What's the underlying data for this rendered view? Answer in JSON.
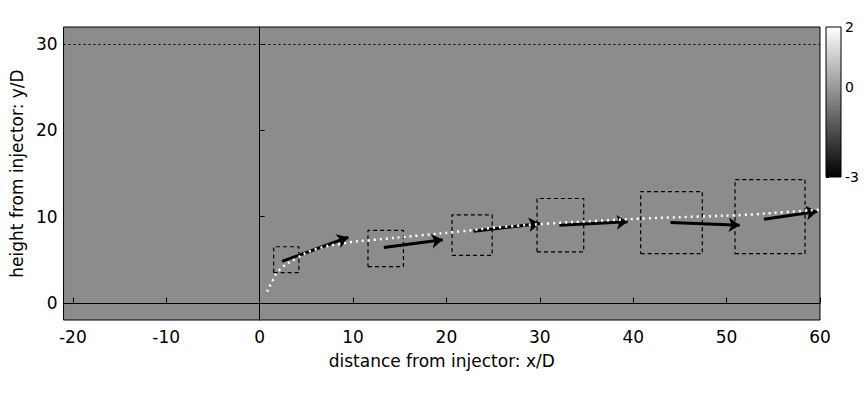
{
  "chart_data": {
    "type": "line",
    "x_label": "distance from injector: x/D",
    "y_label": "height from injector: y/D",
    "xlim": [
      -21,
      60
    ],
    "xticks": [
      -20,
      -10,
      0,
      10,
      20,
      30,
      40,
      50,
      60
    ],
    "ylim": [
      -2,
      32
    ],
    "yticks": [
      0,
      10,
      20,
      30
    ],
    "grid": false,
    "hlines": [
      0,
      30
    ],
    "trajectory": {
      "x": [
        0.8,
        1.5,
        2.1,
        4,
        6,
        9,
        12.3,
        17,
        21.7,
        26,
        31,
        36,
        41.5,
        47,
        51.9,
        56,
        60
      ],
      "y": [
        1.3,
        2.8,
        3.8,
        5.2,
        6.2,
        6.9,
        7.3,
        7.8,
        8.3,
        8.8,
        9.2,
        9.5,
        9.8,
        10.0,
        10.2,
        10.5,
        10.8
      ],
      "color": "#ffffff",
      "line_style": "dotted"
    },
    "arrows": [
      {
        "x": [
          2.4,
          9.5
        ],
        "y": [
          4.8,
          7.6
        ]
      },
      {
        "x": [
          13.3,
          19.6
        ],
        "y": [
          6.4,
          7.3
        ]
      },
      {
        "x": [
          22.9,
          30.0
        ],
        "y": [
          8.3,
          9.2
        ]
      },
      {
        "x": [
          32.1,
          39.4
        ],
        "y": [
          9.0,
          9.4
        ]
      },
      {
        "x": [
          44.0,
          51.4
        ],
        "y": [
          9.3,
          9.0
        ]
      },
      {
        "x": [
          54.0,
          59.7
        ],
        "y": [
          9.7,
          10.6
        ]
      }
    ],
    "boxes": [
      {
        "x": [
          1.5,
          4.2
        ],
        "y": [
          3.5,
          6.5
        ]
      },
      {
        "x": [
          11.6,
          15.4
        ],
        "y": [
          4.2,
          8.4
        ]
      },
      {
        "x": [
          20.6,
          24.9
        ],
        "y": [
          5.5,
          10.2
        ]
      },
      {
        "x": [
          29.7,
          34.7
        ],
        "y": [
          5.9,
          12.1
        ]
      },
      {
        "x": [
          40.8,
          47.4
        ],
        "y": [
          5.7,
          12.9
        ]
      },
      {
        "x": [
          50.9,
          58.4
        ],
        "y": [
          5.7,
          14.3
        ]
      }
    ],
    "colorbar": {
      "range": [
        -3,
        2
      ],
      "ticks": [
        -3,
        0,
        2
      ]
    }
  }
}
